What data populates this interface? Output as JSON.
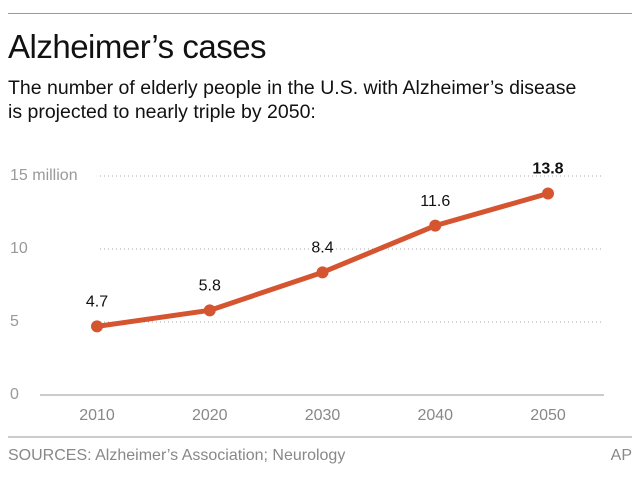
{
  "chart_data": {
    "type": "line",
    "title": "Alzheimer’s cases",
    "subtitle": "The number of elderly people in the U.S. with Alzheimer’s disease is projected to nearly triple by 2050:",
    "categories": [
      "2010",
      "2020",
      "2030",
      "2040",
      "2050"
    ],
    "values": [
      4.7,
      5.8,
      8.4,
      11.6,
      13.8
    ],
    "color": "#d4552f",
    "ylim": [
      0,
      15
    ],
    "yticks": [
      0,
      5,
      10,
      {
        "value": 15,
        "label": "15 million"
      }
    ],
    "grid": true,
    "source": "SOURCES: Alzheimer’s Association; Neurology",
    "credit": "AP"
  }
}
